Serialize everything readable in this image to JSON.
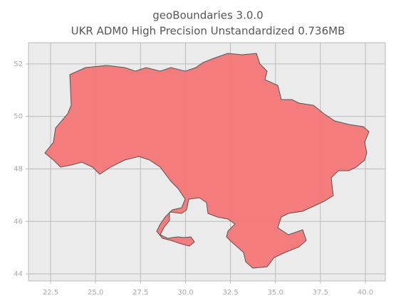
{
  "chart_data": {
    "type": "map",
    "title": "geoBoundaries 3.0.0",
    "subtitle": "UKR ADM0 High Precision Unstandardized 0.736MB",
    "xlim": [
      21.27,
      41.11
    ],
    "ylim": [
      43.73,
      52.81
    ],
    "xticks": [
      22.5,
      {
        "value": 25,
        "label": "25.0"
      },
      27.5,
      {
        "value": 30,
        "label": "30.0"
      },
      32.5,
      {
        "value": 35,
        "label": "35.0"
      },
      37.5,
      {
        "value": 40,
        "label": "40.0"
      }
    ],
    "yticks": [
      44,
      46,
      48,
      50,
      52
    ],
    "grid": true,
    "color": "#f47676"
  }
}
